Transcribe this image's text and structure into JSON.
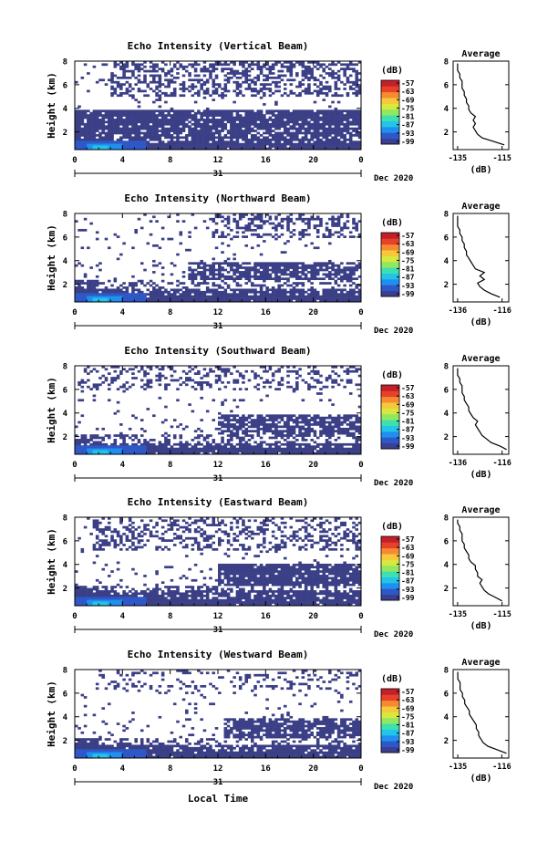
{
  "page": {
    "xlabel": "Local Time",
    "colormap": [
      "#3a3f8f",
      "#2e58c8",
      "#1f8ff0",
      "#22c5e8",
      "#3ee0b0",
      "#8fe860",
      "#d8e840",
      "#f7c83a",
      "#f68a32",
      "#e8412a",
      "#c4202a"
    ]
  },
  "chart_data": [
    {
      "type": "heatmap",
      "title": "Echo Intensity (Vertical Beam)",
      "xlabel": "",
      "ylabel": "Height (km)",
      "x_ticks": [
        "0",
        "4",
        "8",
        "12",
        "16",
        "20",
        "0"
      ],
      "x_day_label": "31",
      "x_month_label": "Dec 2020",
      "y_ticks": [
        "2",
        "4",
        "6",
        "8"
      ],
      "xlim": [
        0,
        24
      ],
      "ylim": [
        0.5,
        8
      ],
      "colorbar": {
        "label": "(dB)",
        "ticks": [
          "-57",
          "-63",
          "-69",
          "-75",
          "-81",
          "-87",
          "-93",
          "-99"
        ]
      },
      "mask": {
        "low_top": 2.6,
        "band_bottom": 2.6,
        "band_top": 3.8,
        "band_start": 0,
        "band_density": 0.9,
        "upper_bottom": 5.0,
        "upper_density": 0.45,
        "upper_start": 3.0,
        "low_dense_start": 0
      },
      "profile": {
        "title": "Average",
        "xlabel": "(dB)",
        "x_ticks": [
          "-135",
          "-115"
        ],
        "xlim": [
          -137,
          -112
        ],
        "y_ticks": [
          "2",
          "4",
          "6",
          "8"
        ],
        "ylim": [
          0.5,
          8
        ],
        "heights": [
          0.9,
          1.2,
          1.5,
          1.8,
          2.1,
          2.4,
          2.7,
          3.0,
          3.3,
          3.6,
          3.9,
          4.2,
          4.5,
          4.8,
          5.1,
          5.4,
          5.7,
          6.0,
          6.3,
          6.6,
          6.9,
          7.2,
          7.5,
          7.8
        ],
        "values": [
          -114,
          -119,
          -124,
          -126,
          -127,
          -128,
          -127,
          -128,
          -127,
          -129,
          -130,
          -130,
          -131,
          -131,
          -132,
          -132,
          -133,
          -133,
          -133,
          -134,
          -134,
          -135,
          -135,
          -135
        ]
      }
    },
    {
      "type": "heatmap",
      "title": "Echo Intensity (Northward Beam)",
      "xlabel": "",
      "ylabel": "Height (km)",
      "x_ticks": [
        "0",
        "4",
        "8",
        "12",
        "16",
        "20",
        "0"
      ],
      "x_day_label": "31",
      "x_month_label": "Dec 2020",
      "y_ticks": [
        "2",
        "4",
        "6",
        "8"
      ],
      "xlim": [
        0,
        24
      ],
      "ylim": [
        0.5,
        8
      ],
      "colorbar": {
        "label": "(dB)",
        "ticks": [
          "-57",
          "-63",
          "-69",
          "-75",
          "-81",
          "-87",
          "-93",
          "-99"
        ]
      },
      "mask": {
        "low_top": 1.6,
        "band_bottom": 2.4,
        "band_top": 3.8,
        "band_start": 9.5,
        "band_density": 0.75,
        "upper_bottom": 6.0,
        "upper_density": 0.35,
        "upper_start": 11.5,
        "low_dense_start": 0
      },
      "profile": {
        "title": "Average",
        "xlabel": "(dB)",
        "x_ticks": [
          "-136",
          "-116"
        ],
        "xlim": [
          -138,
          -113
        ],
        "heights": [
          0.9,
          1.2,
          1.5,
          1.8,
          2.1,
          2.4,
          2.7,
          3.0,
          3.3,
          3.6,
          3.9,
          4.2,
          4.5,
          4.8,
          5.1,
          5.4,
          5.7,
          6.0,
          6.3,
          6.6,
          6.9,
          7.2,
          7.5,
          7.8
        ],
        "values": [
          -117,
          -121,
          -124,
          -126,
          -127,
          -124,
          -126,
          -124,
          -128,
          -129,
          -130,
          -131,
          -132,
          -132,
          -133,
          -133,
          -134,
          -134,
          -135,
          -135,
          -136,
          -136,
          -136,
          -136
        ],
        "y_ticks": [
          "2",
          "4",
          "6",
          "8"
        ],
        "ylim": [
          0.5,
          8
        ]
      }
    },
    {
      "type": "heatmap",
      "title": "Echo Intensity (Southward Beam)",
      "xlabel": "",
      "ylabel": "Height (km)",
      "x_ticks": [
        "0",
        "4",
        "8",
        "12",
        "16",
        "20",
        "0"
      ],
      "x_day_label": "31",
      "x_month_label": "Dec 2020",
      "y_ticks": [
        "2",
        "4",
        "6",
        "8"
      ],
      "xlim": [
        0,
        24
      ],
      "ylim": [
        0.5,
        8
      ],
      "colorbar": {
        "label": "(dB)",
        "ticks": [
          "-57",
          "-63",
          "-69",
          "-75",
          "-81",
          "-87",
          "-93",
          "-99"
        ]
      },
      "mask": {
        "low_top": 1.5,
        "band_bottom": 2.2,
        "band_top": 3.9,
        "band_start": 12.0,
        "band_density": 0.75,
        "upper_bottom": 6.0,
        "upper_density": 0.3,
        "upper_start": 0.5,
        "low_dense_start": 0
      },
      "profile": {
        "title": "Average",
        "xlabel": "(dB)",
        "x_ticks": [
          "-136",
          "-116"
        ],
        "xlim": [
          -138,
          -113
        ],
        "heights": [
          0.9,
          1.2,
          1.5,
          1.8,
          2.1,
          2.4,
          2.7,
          3.0,
          3.3,
          3.6,
          3.9,
          4.2,
          4.5,
          4.8,
          5.1,
          5.4,
          5.7,
          6.0,
          6.3,
          6.6,
          6.9,
          7.2,
          7.5,
          7.8
        ],
        "values": [
          -114,
          -117,
          -121,
          -123,
          -125,
          -126,
          -127,
          -128,
          -127,
          -129,
          -130,
          -131,
          -131,
          -132,
          -133,
          -133,
          -134,
          -134,
          -134,
          -135,
          -135,
          -136,
          -136,
          -136
        ],
        "y_ticks": [
          "2",
          "4",
          "6",
          "8"
        ],
        "ylim": [
          0.5,
          8
        ]
      }
    },
    {
      "type": "heatmap",
      "title": "Echo Intensity (Eastward Beam)",
      "xlabel": "",
      "ylabel": "Height (km)",
      "x_ticks": [
        "0",
        "4",
        "8",
        "12",
        "16",
        "20",
        "0"
      ],
      "x_day_label": "31",
      "x_month_label": "Dec 2020",
      "y_ticks": [
        "2",
        "4",
        "6",
        "8"
      ],
      "xlim": [
        0,
        24
      ],
      "ylim": [
        0.5,
        8
      ],
      "colorbar": {
        "label": "(dB)",
        "ticks": [
          "-57",
          "-63",
          "-69",
          "-75",
          "-81",
          "-87",
          "-93",
          "-99"
        ]
      },
      "mask": {
        "low_top": 1.8,
        "band_bottom": 2.1,
        "band_top": 4.0,
        "band_start": 12.0,
        "band_density": 0.9,
        "upper_bottom": 5.2,
        "upper_density": 0.35,
        "upper_start": 1.5,
        "low_dense_start": 0
      },
      "profile": {
        "title": "Average",
        "xlabel": "(dB)",
        "x_ticks": [
          "-135",
          "-115"
        ],
        "xlim": [
          -137,
          -112
        ],
        "heights": [
          0.9,
          1.2,
          1.5,
          1.8,
          2.1,
          2.4,
          2.7,
          3.0,
          3.3,
          3.6,
          3.9,
          4.2,
          4.5,
          4.8,
          5.1,
          5.4,
          5.7,
          6.0,
          6.3,
          6.6,
          6.9,
          7.2,
          7.5,
          7.8
        ],
        "values": [
          -115,
          -118,
          -121,
          -123,
          -124,
          -125,
          -124,
          -126,
          -126,
          -127,
          -127,
          -129,
          -130,
          -130,
          -131,
          -132,
          -132,
          -133,
          -133,
          -133,
          -134,
          -134,
          -135,
          -135
        ],
        "y_ticks": [
          "2",
          "4",
          "6",
          "8"
        ],
        "ylim": [
          0.5,
          8
        ]
      }
    },
    {
      "type": "heatmap",
      "title": "Echo Intensity (Westward Beam)",
      "xlabel": "Local Time",
      "ylabel": "Height (km)",
      "x_ticks": [
        "0",
        "4",
        "8",
        "12",
        "16",
        "20",
        "0"
      ],
      "x_day_label": "31",
      "x_month_label": "Dec 2020",
      "y_ticks": [
        "2",
        "4",
        "6",
        "8"
      ],
      "xlim": [
        0,
        24
      ],
      "ylim": [
        0.5,
        8
      ],
      "colorbar": {
        "label": "(dB)",
        "ticks": [
          "-57",
          "-63",
          "-69",
          "-75",
          "-81",
          "-87",
          "-93",
          "-99"
        ]
      },
      "mask": {
        "low_top": 1.6,
        "band_bottom": 2.2,
        "band_top": 3.8,
        "band_start": 12.5,
        "band_density": 0.75,
        "upper_bottom": 6.2,
        "upper_density": 0.2,
        "upper_start": 2.0,
        "low_dense_start": 0
      },
      "profile": {
        "title": "Average",
        "xlabel": "(dB)",
        "x_ticks": [
          "-135",
          "-116"
        ],
        "xlim": [
          -137,
          -113
        ],
        "heights": [
          0.9,
          1.2,
          1.5,
          1.8,
          2.1,
          2.4,
          2.7,
          3.0,
          3.3,
          3.6,
          3.9,
          4.2,
          4.5,
          4.8,
          5.1,
          5.4,
          5.7,
          6.0,
          6.3,
          6.6,
          6.9,
          7.2,
          7.5,
          7.8
        ],
        "values": [
          -114,
          -118,
          -122,
          -124,
          -125,
          -126,
          -126,
          -127,
          -127,
          -128,
          -129,
          -130,
          -130,
          -131,
          -132,
          -132,
          -133,
          -133,
          -134,
          -134,
          -134,
          -135,
          -135,
          -135
        ],
        "y_ticks": [
          "2",
          "4",
          "6",
          "8"
        ],
        "ylim": [
          0.5,
          8
        ]
      }
    }
  ]
}
